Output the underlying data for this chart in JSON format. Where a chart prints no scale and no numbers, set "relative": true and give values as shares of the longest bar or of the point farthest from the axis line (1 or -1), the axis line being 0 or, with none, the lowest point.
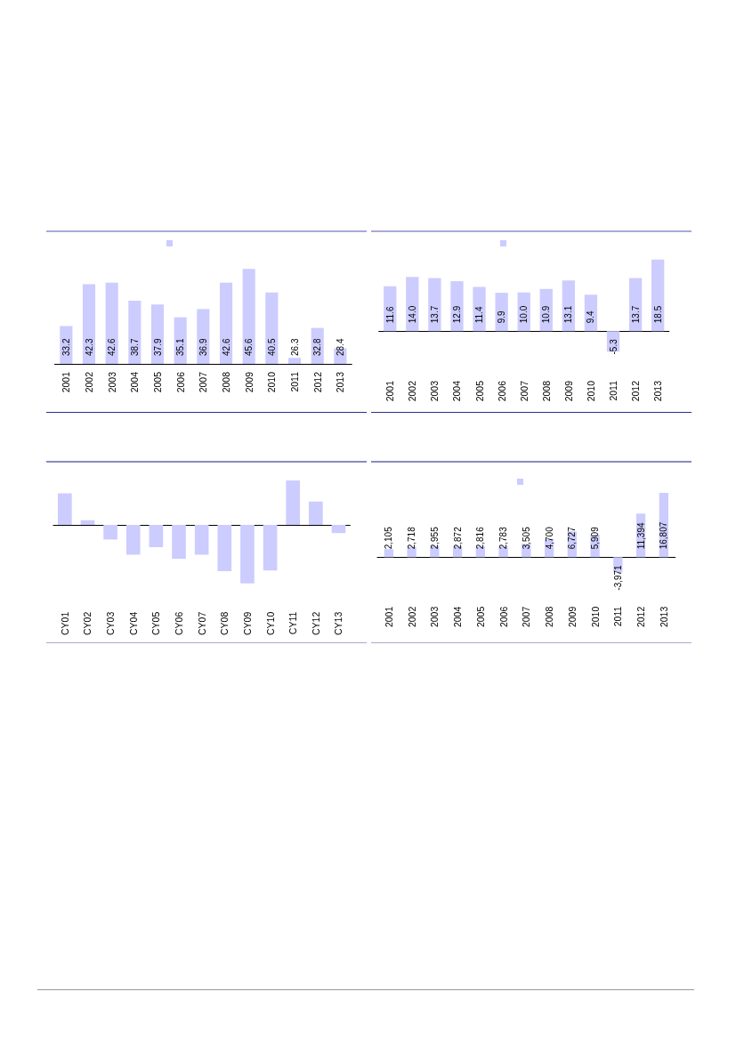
{
  "chart_data": [
    {
      "type": "bar",
      "categories": [
        "2001",
        "2002",
        "2003",
        "2004",
        "2005",
        "2006",
        "2007",
        "2008",
        "2009",
        "2010",
        "2011",
        "2012",
        "2013"
      ],
      "values": [
        33.2,
        42.3,
        42.6,
        38.7,
        37.9,
        35.1,
        36.9,
        42.6,
        45.6,
        40.5,
        26.3,
        32.8,
        28.4
      ],
      "color": "#ccccff",
      "ylim": [
        25,
        45.6
      ],
      "data_labels": true,
      "tick_labels": "x"
    },
    {
      "type": "bar",
      "categories": [
        "2001",
        "2002",
        "2003",
        "2004",
        "2005",
        "2006",
        "2007",
        "2008",
        "2009",
        "2010",
        "2011",
        "2012",
        "2013"
      ],
      "values": [
        11.6,
        14.0,
        13.7,
        12.9,
        11.4,
        9.9,
        10.0,
        10.9,
        13.1,
        9.4,
        -5.3,
        13.7,
        18.5
      ],
      "value_labels": [
        "11.6",
        "14.0",
        "13.7",
        "12.9",
        "11.4",
        "9.9",
        "10.0",
        "10.9",
        "13.1",
        "9.4",
        "-5.3",
        "13.7",
        "18.5"
      ],
      "color": "#ccccff",
      "tick_labels": "x"
    },
    {
      "type": "bar",
      "categories": [
        "CY01",
        "CY02",
        "CY03",
        "CY04",
        "CY05",
        "CY06",
        "CY07",
        "CY08",
        "CY09",
        "CY10",
        "CY11",
        "CY12",
        "CY13"
      ],
      "values": [
        0.54,
        0.08,
        -0.25,
        -0.51,
        -0.38,
        -0.58,
        -0.51,
        -0.79,
        -1,
        -0.78,
        0.76,
        0.4,
        -0.14
      ],
      "color": "#ccccff",
      "relative": true
    },
    {
      "type": "bar",
      "categories": [
        "2001",
        "2002",
        "2003",
        "2004",
        "2005",
        "2006",
        "2007",
        "2008",
        "2009",
        "2010",
        "2011",
        "2012",
        "2013"
      ],
      "values": [
        2105,
        2718,
        2955,
        2872,
        2816,
        2783,
        3505,
        4700,
        6727,
        5909,
        -3971,
        11394,
        16807
      ],
      "value_labels": [
        "2,105",
        "2,718",
        "2,955",
        "2,872",
        "2,816",
        "2,783",
        "3,505",
        "4,700",
        "6,727",
        "5,909",
        "-3,971",
        "11,394",
        "16,807"
      ],
      "color": "#ccccff",
      "tick_labels": "x"
    }
  ]
}
